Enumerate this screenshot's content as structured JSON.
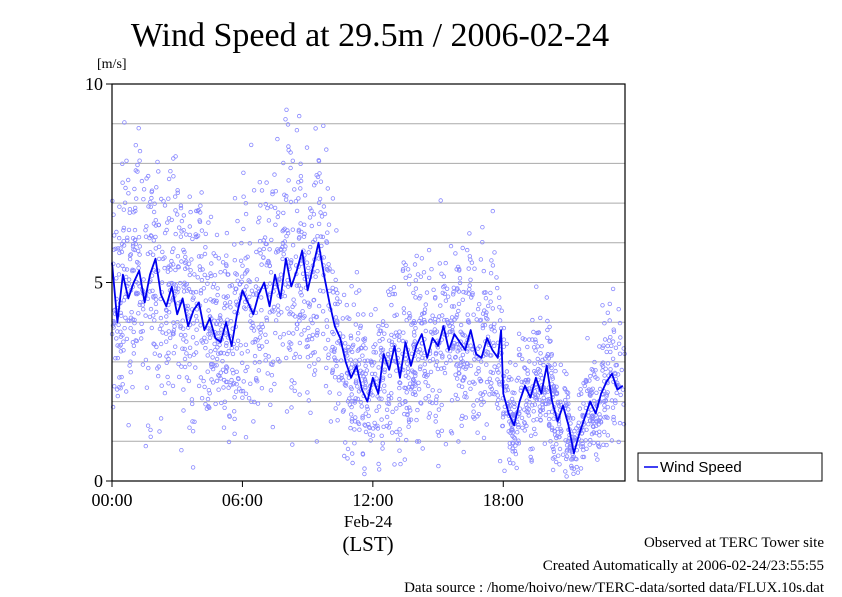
{
  "chart_data": {
    "type": "line",
    "title": "Wind Speed at 29.5m / 2006-02-24",
    "ylabel": "[m/s]",
    "ylim": [
      0,
      10
    ],
    "yticks": [
      0,
      5,
      10
    ],
    "xlim_hours": [
      0,
      23.6
    ],
    "xticks": [
      {
        "hour": 0,
        "label": "00:00"
      },
      {
        "hour": 6,
        "label": "06:00"
      },
      {
        "hour": 12,
        "label": "12:00"
      },
      {
        "hour": 18,
        "label": "18:00"
      }
    ],
    "date_label": "Feb-24",
    "timezone_label": "(LST)",
    "grid": "horizontal, every 1 m/s",
    "legend": {
      "position": "right",
      "entries": [
        "Wind Speed"
      ]
    },
    "color": "#0000ee",
    "scatter_color": "#8888ff",
    "series": [
      {
        "name": "Wind Speed",
        "x": [
          0.0,
          0.25,
          0.5,
          0.75,
          1.0,
          1.25,
          1.5,
          1.75,
          2.0,
          2.25,
          2.5,
          2.75,
          3.0,
          3.25,
          3.5,
          3.75,
          4.0,
          4.25,
          4.5,
          4.75,
          5.0,
          5.25,
          5.5,
          5.75,
          6.0,
          6.25,
          6.5,
          6.75,
          7.0,
          7.25,
          7.5,
          7.75,
          8.0,
          8.25,
          8.5,
          8.75,
          9.0,
          9.25,
          9.5,
          9.75,
          10.0,
          10.25,
          10.5,
          10.75,
          11.0,
          11.25,
          11.5,
          11.75,
          12.0,
          12.25,
          12.5,
          12.75,
          13.0,
          13.25,
          13.5,
          13.75,
          14.0,
          14.25,
          14.5,
          14.75,
          15.0,
          15.25,
          15.5,
          15.75,
          16.0,
          16.25,
          16.5,
          16.75,
          17.0,
          17.25,
          17.5,
          17.75,
          17.9,
          18.0,
          18.25,
          18.5,
          18.75,
          19.0,
          19.25,
          19.5,
          19.75,
          20.0,
          20.25,
          20.5,
          20.75,
          21.0,
          21.25,
          21.5,
          21.75,
          22.0,
          22.25,
          22.5,
          22.75,
          23.0,
          23.25,
          23.5
        ],
        "y": [
          5.5,
          4.0,
          5.2,
          4.6,
          5.0,
          5.3,
          4.5,
          5.2,
          5.6,
          4.7,
          4.4,
          4.9,
          4.2,
          4.6,
          3.9,
          4.3,
          4.5,
          3.8,
          4.1,
          3.6,
          3.5,
          4.0,
          3.4,
          4.2,
          4.8,
          4.5,
          4.2,
          4.7,
          5.0,
          4.4,
          5.2,
          4.6,
          5.6,
          4.9,
          5.3,
          5.8,
          4.8,
          5.4,
          6.0,
          5.2,
          4.5,
          3.9,
          3.6,
          3.0,
          2.6,
          2.9,
          2.3,
          2.0,
          2.6,
          2.2,
          3.2,
          2.8,
          3.4,
          2.6,
          3.5,
          2.9,
          3.4,
          3.7,
          3.1,
          3.6,
          3.4,
          3.9,
          3.3,
          3.7,
          3.5,
          3.3,
          3.8,
          3.2,
          3.1,
          3.6,
          3.3,
          3.1,
          3.8,
          2.2,
          1.7,
          1.4,
          2.0,
          2.4,
          2.1,
          2.6,
          2.2,
          2.9,
          2.0,
          1.5,
          1.9,
          1.4,
          0.7,
          1.2,
          1.6,
          2.0,
          1.7,
          2.2,
          2.5,
          2.7,
          2.3,
          2.4
        ]
      }
    ]
  },
  "footer": {
    "site": "Observed at TERC Tower site",
    "created": "Created Automatically at 2006-02-24/23:55:55",
    "source": "Data source : /home/hoivo/new/TERC-data/sorted  data/FLUX.10s.dat"
  }
}
